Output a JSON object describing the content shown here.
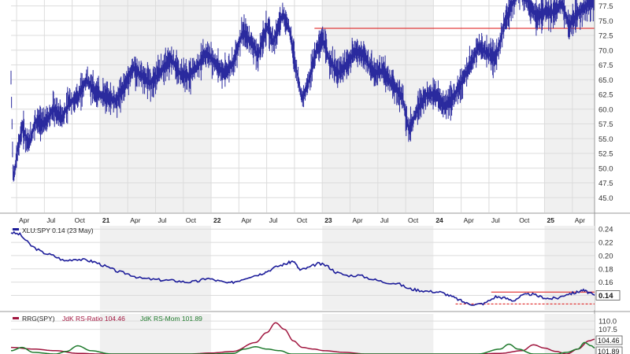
{
  "chart_data": [
    {
      "panel": "price",
      "type": "bar",
      "subtype": "ohlc",
      "ylim": [
        42.5,
        78.5
      ],
      "yticks": [
        "45.0",
        "47.5",
        "50.0",
        "52.5",
        "55.0",
        "57.5",
        "60.0",
        "62.5",
        "65.0",
        "67.5",
        "70.0",
        "72.5",
        "75.0",
        "77.5"
      ],
      "xticks": [
        "Apr",
        "Jul",
        "Oct",
        "21",
        "Apr",
        "Jul",
        "Oct",
        "22",
        "Apr",
        "Jul",
        "Oct",
        "23",
        "Apr",
        "Jul",
        "Oct",
        "24",
        "Apr",
        "Jul",
        "Oct",
        "25",
        "Apr"
      ],
      "x_range_years": [
        2020.2,
        2025.45
      ],
      "series": [
        {
          "points": [
            [
              2020.2,
              65.0
            ],
            [
              2020.22,
              48.0
            ],
            [
              2020.26,
              53.0
            ],
            [
              2020.3,
              57.0
            ],
            [
              2020.36,
              54.0
            ],
            [
              2020.42,
              58.0
            ],
            [
              2020.5,
              57.5
            ],
            [
              2020.58,
              60.0
            ],
            [
              2020.66,
              58.5
            ],
            [
              2020.72,
              61.0
            ],
            [
              2020.8,
              62.0
            ],
            [
              2020.88,
              65.0
            ],
            [
              2020.95,
              63.0
            ],
            [
              2021.05,
              62.0
            ],
            [
              2021.15,
              61.5
            ],
            [
              2021.22,
              64.0
            ],
            [
              2021.3,
              67.0
            ],
            [
              2021.38,
              65.5
            ],
            [
              2021.46,
              64.5
            ],
            [
              2021.55,
              66.5
            ],
            [
              2021.64,
              68.5
            ],
            [
              2021.72,
              66.0
            ],
            [
              2021.8,
              65.5
            ],
            [
              2021.88,
              67.5
            ],
            [
              2021.96,
              69.5
            ],
            [
              2022.05,
              67.5
            ],
            [
              2022.12,
              66.0
            ],
            [
              2022.2,
              68.0
            ],
            [
              2022.28,
              73.0
            ],
            [
              2022.36,
              71.5
            ],
            [
              2022.42,
              69.0
            ],
            [
              2022.5,
              74.0
            ],
            [
              2022.56,
              71.5
            ],
            [
              2022.64,
              76.0
            ],
            [
              2022.7,
              74.0
            ],
            [
              2022.76,
              67.5
            ],
            [
              2022.82,
              61.5
            ],
            [
              2022.88,
              65.0
            ],
            [
              2022.94,
              69.5
            ],
            [
              2023.0,
              72.0
            ],
            [
              2023.06,
              68.5
            ],
            [
              2023.14,
              66.0
            ],
            [
              2023.22,
              67.5
            ],
            [
              2023.3,
              70.0
            ],
            [
              2023.38,
              69.0
            ],
            [
              2023.46,
              66.0
            ],
            [
              2023.54,
              66.5
            ],
            [
              2023.62,
              64.5
            ],
            [
              2023.72,
              62.0
            ],
            [
              2023.78,
              56.5
            ],
            [
              2023.86,
              60.0
            ],
            [
              2023.94,
              62.5
            ],
            [
              2024.02,
              62.5
            ],
            [
              2024.1,
              60.5
            ],
            [
              2024.18,
              62.0
            ],
            [
              2024.24,
              64.0
            ],
            [
              2024.32,
              67.0
            ],
            [
              2024.4,
              70.5
            ],
            [
              2024.48,
              69.5
            ],
            [
              2024.56,
              68.5
            ],
            [
              2024.64,
              74.5
            ],
            [
              2024.7,
              77.5
            ],
            [
              2024.76,
              80.0
            ],
            [
              2024.84,
              78.5
            ],
            [
              2024.92,
              76.0
            ],
            [
              2025.0,
              76.5
            ],
            [
              2025.08,
              76.5
            ],
            [
              2025.16,
              78.0
            ],
            [
              2025.22,
              74.0
            ],
            [
              2025.28,
              76.0
            ],
            [
              2025.34,
              77.0
            ],
            [
              2025.4,
              78.0
            ]
          ]
        }
      ],
      "resistance_line": {
        "value": 73.7,
        "x_start": 2022.93,
        "x_end": 2025.45
      }
    },
    {
      "panel": "ratio",
      "type": "line",
      "legend": "XLU:SPY 0.14 (23 May)",
      "last_value_label": "0.14",
      "ylim": [
        0.118,
        0.245
      ],
      "yticks": [
        "0.14",
        "0.16",
        "0.18",
        "0.20",
        "0.22",
        "0.24"
      ],
      "series": [
        {
          "name": "XLU:SPY",
          "points": [
            [
              2020.2,
              0.235
            ],
            [
              2020.28,
              0.232
            ],
            [
              2020.38,
              0.215
            ],
            [
              2020.48,
              0.205
            ],
            [
              2020.58,
              0.2
            ],
            [
              2020.68,
              0.192
            ],
            [
              2020.78,
              0.195
            ],
            [
              2020.88,
              0.193
            ],
            [
              2020.96,
              0.19
            ],
            [
              2021.06,
              0.183
            ],
            [
              2021.16,
              0.176
            ],
            [
              2021.26,
              0.172
            ],
            [
              2021.36,
              0.166
            ],
            [
              2021.48,
              0.164
            ],
            [
              2021.58,
              0.163
            ],
            [
              2021.68,
              0.162
            ],
            [
              2021.78,
              0.16
            ],
            [
              2021.88,
              0.161
            ],
            [
              2021.96,
              0.166
            ],
            [
              2022.06,
              0.162
            ],
            [
              2022.16,
              0.158
            ],
            [
              2022.24,
              0.162
            ],
            [
              2022.34,
              0.168
            ],
            [
              2022.44,
              0.172
            ],
            [
              2022.5,
              0.176
            ],
            [
              2022.6,
              0.184
            ],
            [
              2022.68,
              0.188
            ],
            [
              2022.74,
              0.192
            ],
            [
              2022.8,
              0.178
            ],
            [
              2022.88,
              0.182
            ],
            [
              2022.96,
              0.188
            ],
            [
              2023.04,
              0.185
            ],
            [
              2023.12,
              0.175
            ],
            [
              2023.22,
              0.17
            ],
            [
              2023.34,
              0.17
            ],
            [
              2023.46,
              0.164
            ],
            [
              2023.56,
              0.16
            ],
            [
              2023.68,
              0.158
            ],
            [
              2023.78,
              0.15
            ],
            [
              2023.86,
              0.148
            ],
            [
              2023.96,
              0.146
            ],
            [
              2024.06,
              0.145
            ],
            [
              2024.14,
              0.14
            ],
            [
              2024.22,
              0.134
            ],
            [
              2024.3,
              0.128
            ],
            [
              2024.38,
              0.126
            ],
            [
              2024.46,
              0.128
            ],
            [
              2024.56,
              0.138
            ],
            [
              2024.64,
              0.136
            ],
            [
              2024.72,
              0.132
            ],
            [
              2024.8,
              0.14
            ],
            [
              2024.88,
              0.142
            ],
            [
              2024.96,
              0.138
            ],
            [
              2025.04,
              0.135
            ],
            [
              2025.12,
              0.136
            ],
            [
              2025.2,
              0.142
            ],
            [
              2025.28,
              0.144
            ],
            [
              2025.34,
              0.148
            ],
            [
              2025.4,
              0.144
            ],
            [
              2025.45,
              0.14
            ]
          ]
        }
      ],
      "hline_solid": {
        "value": 0.145,
        "x_start": 2024.52,
        "x_end": 2025.45
      },
      "hline_dashed": {
        "value": 0.127,
        "x_start": 2024.2,
        "x_end": 2025.45
      }
    },
    {
      "panel": "rrg",
      "type": "line",
      "legend_prefix": "RRG(SPY)",
      "legend_ratio": "JdK RS-Ratio 104.46",
      "legend_mom": "JdK RS-Mom 101.89",
      "yticks": [
        "110.0",
        "107.5"
      ],
      "ylim": [
        100.0,
        111.0
      ],
      "last_labels": [
        "104.46",
        "101.89"
      ],
      "series": [
        {
          "name": "JdK RS-Ratio",
          "color": "#a0153e",
          "points": [
            [
              2020.2,
              102.0
            ],
            [
              2020.4,
              101.5
            ],
            [
              2020.6,
              101.0
            ],
            [
              2020.8,
              100.2
            ],
            [
              2021.0,
              100.0
            ],
            [
              2021.2,
              100.0
            ],
            [
              2021.4,
              100.0
            ],
            [
              2021.6,
              100.0
            ],
            [
              2021.8,
              100.0
            ],
            [
              2022.0,
              100.3
            ],
            [
              2022.2,
              100.8
            ],
            [
              2022.4,
              103.5
            ],
            [
              2022.5,
              106.5
            ],
            [
              2022.58,
              109.5
            ],
            [
              2022.66,
              107.5
            ],
            [
              2022.74,
              104.0
            ],
            [
              2022.82,
              102.0
            ],
            [
              2022.92,
              101.5
            ],
            [
              2023.02,
              101.0
            ],
            [
              2023.2,
              100.5
            ],
            [
              2023.4,
              100.0
            ],
            [
              2023.6,
              100.0
            ],
            [
              2023.8,
              100.0
            ],
            [
              2024.0,
              100.0
            ],
            [
              2024.2,
              100.0
            ],
            [
              2024.4,
              100.0
            ],
            [
              2024.6,
              100.2
            ],
            [
              2024.8,
              101.0
            ],
            [
              2024.9,
              102.8
            ],
            [
              2025.0,
              101.8
            ],
            [
              2025.1,
              100.8
            ],
            [
              2025.2,
              100.0
            ],
            [
              2025.3,
              101.5
            ],
            [
              2025.4,
              104.0
            ],
            [
              2025.45,
              104.46
            ]
          ]
        },
        {
          "name": "JdK RS-Mom",
          "color": "#1f7a2d",
          "points": [
            [
              2020.2,
              101.0
            ],
            [
              2020.3,
              102.0
            ],
            [
              2020.4,
              100.5
            ],
            [
              2020.6,
              100.0
            ],
            [
              2020.7,
              100.8
            ],
            [
              2020.8,
              102.5
            ],
            [
              2020.92,
              101.0
            ],
            [
              2021.1,
              100.0
            ],
            [
              2021.4,
              100.0
            ],
            [
              2021.7,
              100.0
            ],
            [
              2022.0,
              100.0
            ],
            [
              2022.2,
              100.2
            ],
            [
              2022.3,
              101.5
            ],
            [
              2022.4,
              102.2
            ],
            [
              2022.5,
              101.5
            ],
            [
              2022.62,
              101.0
            ],
            [
              2022.72,
              100.0
            ],
            [
              2022.9,
              100.0
            ],
            [
              2023.2,
              100.0
            ],
            [
              2023.6,
              100.0
            ],
            [
              2024.0,
              100.0
            ],
            [
              2024.4,
              100.0
            ],
            [
              2024.6,
              101.5
            ],
            [
              2024.68,
              103.0
            ],
            [
              2024.76,
              101.5
            ],
            [
              2024.9,
              100.0
            ],
            [
              2025.1,
              100.0
            ],
            [
              2025.2,
              100.5
            ],
            [
              2025.3,
              101.5
            ],
            [
              2025.36,
              103.5
            ],
            [
              2025.42,
              102.5
            ],
            [
              2025.45,
              101.89
            ]
          ]
        }
      ]
    }
  ]
}
